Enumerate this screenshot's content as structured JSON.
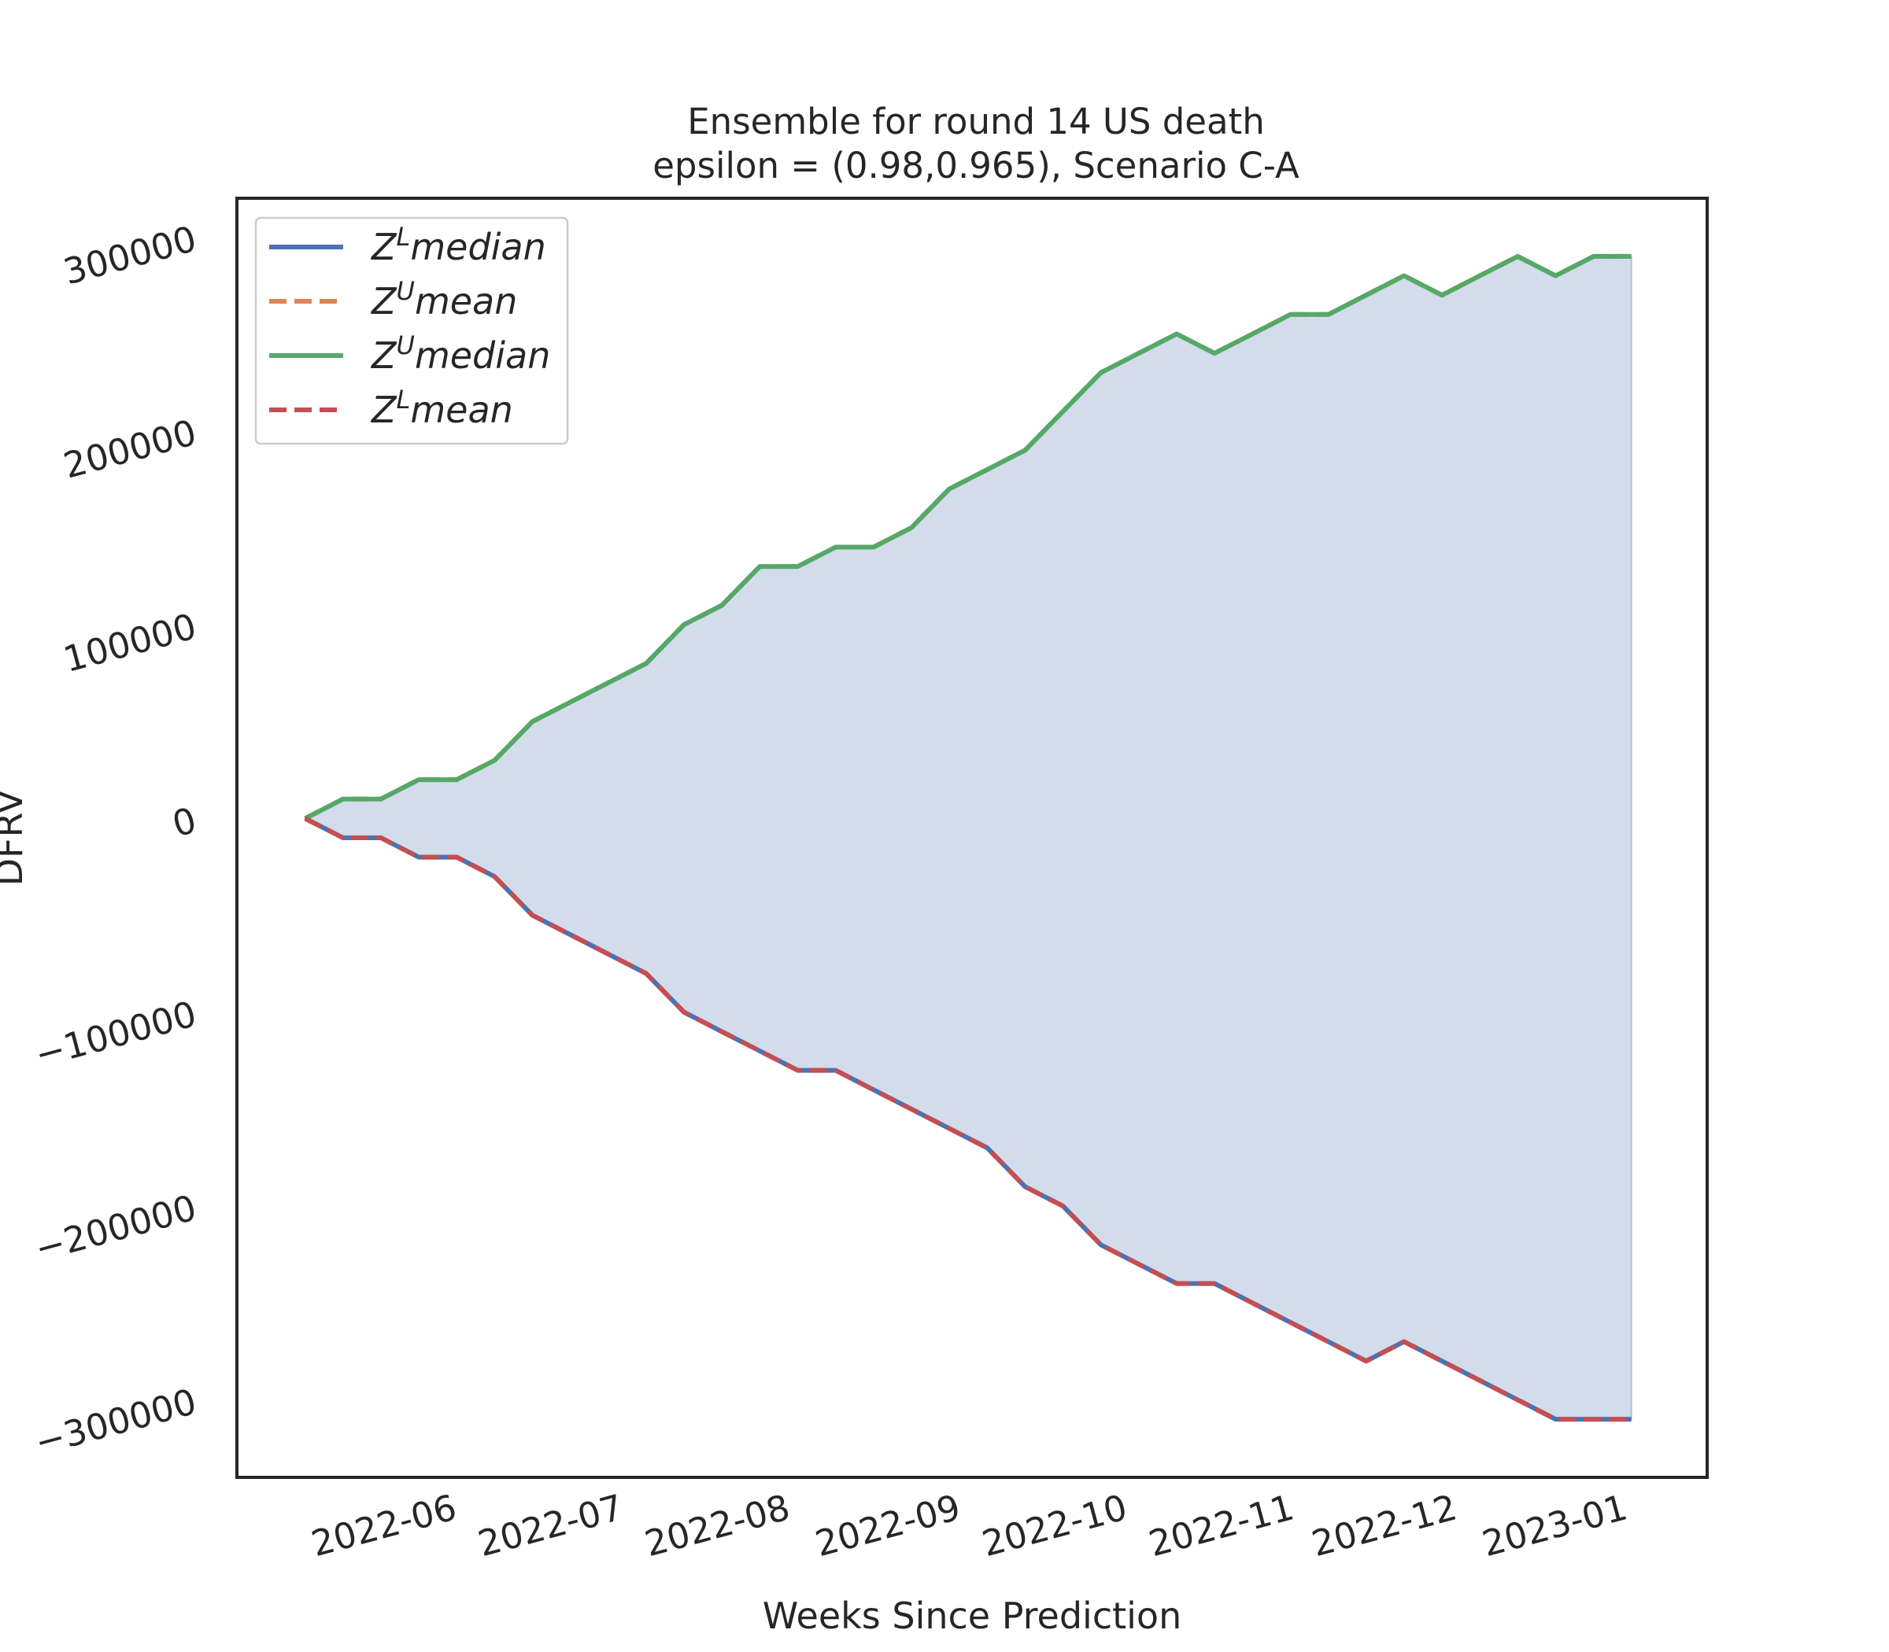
{
  "chart_data": {
    "type": "line",
    "title": [
      "Ensemble for round 14 US  death",
      "epsilon = (0.98,0.965), Scenario C-A"
    ],
    "xlabel": "Weeks Since Prediction",
    "ylabel": "DFRV",
    "ylim": [
      -340000,
      320000
    ],
    "y_ticks": [
      300000,
      200000,
      100000,
      0,
      -100000,
      -200000,
      -300000
    ],
    "y_tick_labels": [
      "300000",
      "200000",
      "100000",
      "0",
      "−100000",
      "−200000",
      "−300000"
    ],
    "x_range": [
      -1.8,
      37
    ],
    "x_ticks": [
      {
        "pos": 2.8,
        "label": "2022-06"
      },
      {
        "pos": 7.2,
        "label": "2022-07"
      },
      {
        "pos": 11.6,
        "label": "2022-08"
      },
      {
        "pos": 16.1,
        "label": "2022-09"
      },
      {
        "pos": 20.5,
        "label": "2022-10"
      },
      {
        "pos": 24.9,
        "label": "2022-11"
      },
      {
        "pos": 29.2,
        "label": "2022-12"
      },
      {
        "pos": 33.7,
        "label": "2023-01"
      }
    ],
    "x": [
      0,
      1,
      2,
      3,
      4,
      5,
      6,
      7,
      8,
      9,
      10,
      11,
      12,
      13,
      14,
      15,
      16,
      17,
      18,
      19,
      20,
      21,
      22,
      23,
      24,
      25,
      26,
      27,
      28,
      29,
      30,
      31,
      32,
      33,
      34,
      35
    ],
    "series": [
      {
        "name": "Z^L median",
        "legend_base": "Z",
        "legend_sup": "L",
        "legend_rest": "median",
        "color": "#4c72b0",
        "dash": "none",
        "values": [
          0,
          -10000,
          -10000,
          -20000,
          -20000,
          -30000,
          -50000,
          -60000,
          -70000,
          -80000,
          -100000,
          -110000,
          -120000,
          -130000,
          -130000,
          -140000,
          -150000,
          -160000,
          -170000,
          -190000,
          -200000,
          -220000,
          -230000,
          -240000,
          -240000,
          -250000,
          -260000,
          -270000,
          -280000,
          -270000,
          -280000,
          -290000,
          -300000,
          -310000,
          -310000,
          -310000
        ]
      },
      {
        "name": "Z^U mean",
        "legend_base": "Z",
        "legend_sup": "U",
        "legend_rest": "mean",
        "color": "#dd8452",
        "dash": "dashed",
        "values": [
          0,
          10000,
          10000,
          20000,
          20000,
          30000,
          50000,
          60000,
          70000,
          80000,
          100000,
          110000,
          130000,
          130000,
          140000,
          140000,
          150000,
          170000,
          180000,
          190000,
          210000,
          230000,
          240000,
          250000,
          240000,
          250000,
          260000,
          260000,
          270000,
          280000,
          270000,
          280000,
          290000,
          280000,
          290000,
          290000
        ]
      },
      {
        "name": "Z^U median",
        "legend_base": "Z",
        "legend_sup": "U",
        "legend_rest": "median",
        "color": "#55a868",
        "dash": "none",
        "values": [
          0,
          10000,
          10000,
          20000,
          20000,
          30000,
          50000,
          60000,
          70000,
          80000,
          100000,
          110000,
          130000,
          130000,
          140000,
          140000,
          150000,
          170000,
          180000,
          190000,
          210000,
          230000,
          240000,
          250000,
          240000,
          250000,
          260000,
          260000,
          270000,
          280000,
          270000,
          280000,
          290000,
          280000,
          290000,
          290000
        ]
      },
      {
        "name": "Z^L mean",
        "legend_base": "Z",
        "legend_sup": "L",
        "legend_rest": "mean",
        "color": "#c44e52",
        "dash": "dashed",
        "values": [
          0,
          -10000,
          -10000,
          -20000,
          -20000,
          -30000,
          -50000,
          -60000,
          -70000,
          -80000,
          -100000,
          -110000,
          -120000,
          -130000,
          -130000,
          -140000,
          -150000,
          -160000,
          -170000,
          -190000,
          -200000,
          -220000,
          -230000,
          -240000,
          -240000,
          -250000,
          -260000,
          -270000,
          -280000,
          -270000,
          -280000,
          -290000,
          -300000,
          -310000,
          -310000,
          -310000
        ]
      }
    ],
    "fill_between": {
      "lower": "Z^L median",
      "upper": "Z^U median",
      "color": "#4c72b0",
      "opacity": 0.25
    },
    "legend_position": "upper-left",
    "grid": false
  }
}
